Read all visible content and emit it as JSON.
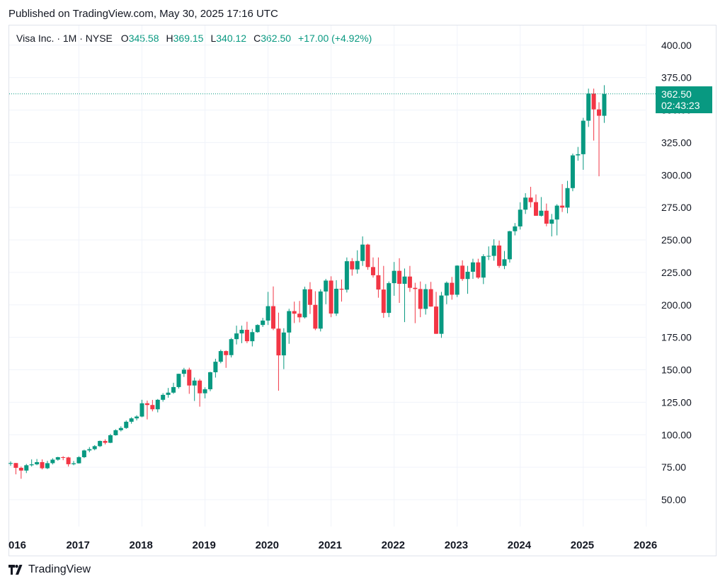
{
  "header": {
    "published": "Published on TradingView.com, May 30, 2025 17:16 UTC"
  },
  "legend": {
    "symbol": "Visa Inc. · 1M · NYSE",
    "o_label": "O",
    "o_value": "345.58",
    "h_label": "H",
    "h_value": "369.15",
    "l_label": "L",
    "l_value": "340.12",
    "c_label": "C",
    "c_value": "362.50",
    "change": "+17.00 (+4.92%)"
  },
  "price_tag": {
    "price": "362.50",
    "countdown": "02:43:23"
  },
  "footer": {
    "brand": "TradingView"
  },
  "colors": {
    "up": "#089981",
    "down": "#f23645",
    "grid": "#f0f3fa",
    "last_price_line": "#089981"
  },
  "chart_data": {
    "type": "candlestick",
    "interval": "1M",
    "y_ticks": [
      "50.00",
      "75.00",
      "100.00",
      "125.00",
      "150.00",
      "175.00",
      "200.00",
      "225.00",
      "250.00",
      "275.00",
      "300.00",
      "325.00",
      "350.00",
      "375.00",
      "400.00"
    ],
    "x_ticks": [
      "016",
      "2017",
      "2018",
      "2019",
      "2020",
      "2021",
      "2022",
      "2023",
      "2024",
      "2025",
      "2026"
    ],
    "grid": true,
    "last_price": 362.5,
    "candles": [
      [
        "2015-12",
        77.6,
        79.5,
        76.0,
        78.2
      ],
      [
        "2016-01",
        78.2,
        78.3,
        69.5,
        74.5
      ],
      [
        "2016-02",
        74.5,
        75.5,
        66.1,
        72.4
      ],
      [
        "2016-03",
        72.4,
        77.5,
        70.5,
        76.5
      ],
      [
        "2016-04",
        76.5,
        81.0,
        75.5,
        77.2
      ],
      [
        "2016-05",
        77.2,
        81.3,
        76.5,
        78.9
      ],
      [
        "2016-06",
        78.9,
        81.0,
        73.3,
        74.2
      ],
      [
        "2016-07",
        74.2,
        79.9,
        73.5,
        78.1
      ],
      [
        "2016-08",
        78.1,
        81.9,
        77.1,
        80.8
      ],
      [
        "2016-09",
        80.8,
        83.0,
        80.0,
        82.7
      ],
      [
        "2016-10",
        82.7,
        83.5,
        80.4,
        82.5
      ],
      [
        "2016-11",
        82.5,
        83.0,
        75.5,
        77.3
      ],
      [
        "2016-12",
        77.3,
        79.8,
        76.5,
        78.0
      ],
      [
        "2017-01",
        78.0,
        83.5,
        77.8,
        82.7
      ],
      [
        "2017-02",
        82.7,
        88.5,
        82.0,
        87.9
      ],
      [
        "2017-03",
        87.9,
        90.5,
        86.5,
        88.9
      ],
      [
        "2017-04",
        88.9,
        92.0,
        88.0,
        91.2
      ],
      [
        "2017-05",
        91.2,
        95.5,
        90.5,
        95.2
      ],
      [
        "2017-06",
        95.2,
        96.5,
        92.5,
        93.8
      ],
      [
        "2017-07",
        93.8,
        100.6,
        93.5,
        99.6
      ],
      [
        "2017-08",
        99.6,
        104.2,
        99.3,
        103.5
      ],
      [
        "2017-09",
        103.5,
        106.5,
        102.5,
        105.2
      ],
      [
        "2017-10",
        105.2,
        111.0,
        104.5,
        110.0
      ],
      [
        "2017-11",
        110.0,
        113.5,
        108.5,
        112.6
      ],
      [
        "2017-12",
        112.6,
        115.0,
        111.0,
        114.0
      ],
      [
        "2018-01",
        114.0,
        126.9,
        113.5,
        124.2
      ],
      [
        "2018-02",
        124.2,
        126.3,
        111.8,
        122.9
      ],
      [
        "2018-03",
        122.9,
        126.8,
        118.0,
        119.6
      ],
      [
        "2018-04",
        119.6,
        127.5,
        117.2,
        126.9
      ],
      [
        "2018-05",
        126.9,
        132.0,
        125.5,
        130.7
      ],
      [
        "2018-06",
        130.7,
        136.0,
        128.5,
        132.4
      ],
      [
        "2018-07",
        132.4,
        140.0,
        131.5,
        136.7
      ],
      [
        "2018-08",
        136.7,
        147.0,
        135.5,
        146.9
      ],
      [
        "2018-09",
        146.9,
        151.5,
        144.5,
        150.1
      ],
      [
        "2018-10",
        150.1,
        151.6,
        131.5,
        137.9
      ],
      [
        "2018-11",
        137.9,
        144.0,
        126.0,
        141.7
      ],
      [
        "2018-12",
        141.7,
        143.0,
        121.6,
        131.9
      ],
      [
        "2019-01",
        131.9,
        136.5,
        128.0,
        135.0
      ],
      [
        "2019-02",
        135.0,
        148.5,
        133.5,
        148.1
      ],
      [
        "2019-03",
        148.1,
        158.5,
        144.0,
        156.2
      ],
      [
        "2019-04",
        156.2,
        165.5,
        155.0,
        164.4
      ],
      [
        "2019-05",
        164.4,
        164.9,
        151.5,
        161.3
      ],
      [
        "2019-06",
        161.3,
        174.5,
        159.5,
        173.6
      ],
      [
        "2019-07",
        173.6,
        184.0,
        169.5,
        178.0
      ],
      [
        "2019-08",
        178.0,
        184.0,
        170.5,
        180.8
      ],
      [
        "2019-09",
        180.8,
        187.0,
        170.5,
        172.0
      ],
      [
        "2019-10",
        172.0,
        181.5,
        168.0,
        179.0
      ],
      [
        "2019-11",
        179.0,
        185.0,
        178.5,
        184.5
      ],
      [
        "2019-12",
        184.5,
        190.0,
        183.0,
        187.9
      ],
      [
        "2020-01",
        187.9,
        210.0,
        184.5,
        199.0
      ],
      [
        "2020-02",
        199.0,
        214.2,
        180.5,
        181.7
      ],
      [
        "2020-03",
        181.7,
        194.0,
        133.9,
        161.1
      ],
      [
        "2020-04",
        161.1,
        182.0,
        150.5,
        178.7
      ],
      [
        "2020-05",
        178.7,
        197.0,
        170.0,
        195.2
      ],
      [
        "2020-06",
        195.2,
        202.5,
        186.0,
        193.2
      ],
      [
        "2020-07",
        193.2,
        203.0,
        186.5,
        190.4
      ],
      [
        "2020-08",
        190.4,
        214.0,
        189.5,
        212.0
      ],
      [
        "2020-09",
        212.0,
        217.5,
        193.0,
        200.0
      ],
      [
        "2020-10",
        200.0,
        210.5,
        180.5,
        181.7
      ],
      [
        "2020-11",
        181.7,
        212.0,
        179.5,
        210.3
      ],
      [
        "2020-12",
        210.3,
        220.0,
        200.5,
        218.7
      ],
      [
        "2021-01",
        218.7,
        222.0,
        190.5,
        193.3
      ],
      [
        "2021-02",
        193.3,
        219.0,
        191.5,
        212.4
      ],
      [
        "2021-03",
        212.4,
        219.5,
        202.5,
        211.7
      ],
      [
        "2021-04",
        211.7,
        236.5,
        209.5,
        233.6
      ],
      [
        "2021-05",
        233.6,
        236.0,
        222.5,
        227.3
      ],
      [
        "2021-06",
        227.3,
        242.0,
        224.0,
        233.8
      ],
      [
        "2021-07",
        233.8,
        252.7,
        230.0,
        246.4
      ],
      [
        "2021-08",
        246.4,
        247.0,
        227.0,
        229.1
      ],
      [
        "2021-09",
        229.1,
        236.5,
        221.0,
        222.8
      ],
      [
        "2021-10",
        222.8,
        236.5,
        205.5,
        211.8
      ],
      [
        "2021-11",
        211.8,
        230.0,
        190.0,
        193.8
      ],
      [
        "2021-12",
        193.8,
        218.0,
        190.5,
        216.7
      ],
      [
        "2022-01",
        216.7,
        233.0,
        207.0,
        226.2
      ],
      [
        "2022-02",
        226.2,
        235.9,
        201.5,
        216.2
      ],
      [
        "2022-03",
        216.2,
        228.0,
        186.7,
        221.8
      ],
      [
        "2022-04",
        221.8,
        230.0,
        210.0,
        213.1
      ],
      [
        "2022-05",
        213.1,
        217.0,
        185.9,
        212.2
      ],
      [
        "2022-06",
        212.2,
        218.0,
        190.5,
        196.9
      ],
      [
        "2022-07",
        196.9,
        216.0,
        192.5,
        212.1
      ],
      [
        "2022-08",
        212.1,
        217.7,
        198.5,
        198.7
      ],
      [
        "2022-09",
        198.7,
        210.0,
        177.6,
        177.7
      ],
      [
        "2022-10",
        177.7,
        210.0,
        174.6,
        207.2
      ],
      [
        "2022-11",
        207.2,
        218.0,
        200.5,
        217.0
      ],
      [
        "2022-12",
        217.0,
        221.5,
        204.0,
        207.8
      ],
      [
        "2023-01",
        207.8,
        230.5,
        206.0,
        230.2
      ],
      [
        "2023-02",
        230.2,
        234.3,
        218.5,
        219.9
      ],
      [
        "2023-03",
        219.9,
        230.0,
        208.5,
        225.5
      ],
      [
        "2023-04",
        225.5,
        235.5,
        220.0,
        232.7
      ],
      [
        "2023-05",
        232.7,
        235.5,
        220.0,
        221.0
      ],
      [
        "2023-06",
        221.0,
        239.0,
        216.0,
        237.5
      ],
      [
        "2023-07",
        237.5,
        245.0,
        234.5,
        237.7
      ],
      [
        "2023-08",
        237.7,
        250.5,
        234.0,
        245.7
      ],
      [
        "2023-09",
        245.7,
        249.5,
        228.5,
        230.0
      ],
      [
        "2023-10",
        230.0,
        241.5,
        227.5,
        235.1
      ],
      [
        "2023-11",
        235.1,
        257.0,
        232.5,
        256.7
      ],
      [
        "2023-12",
        256.7,
        263.0,
        253.5,
        260.4
      ],
      [
        "2024-01",
        260.4,
        279.0,
        258.0,
        273.3
      ],
      [
        "2024-02",
        273.3,
        286.0,
        270.0,
        282.6
      ],
      [
        "2024-03",
        282.6,
        290.9,
        275.0,
        279.1
      ],
      [
        "2024-04",
        279.1,
        285.0,
        268.5,
        268.6
      ],
      [
        "2024-05",
        268.6,
        283.0,
        268.0,
        272.5
      ],
      [
        "2024-06",
        272.5,
        278.0,
        260.5,
        262.5
      ],
      [
        "2024-07",
        262.5,
        270.0,
        252.7,
        265.7
      ],
      [
        "2024-08",
        265.7,
        277.5,
        253.5,
        276.4
      ],
      [
        "2024-09",
        276.4,
        293.0,
        271.5,
        274.9
      ],
      [
        "2024-10",
        274.9,
        295.5,
        270.5,
        289.9
      ],
      [
        "2024-11",
        289.9,
        316.5,
        287.5,
        315.1
      ],
      [
        "2024-12",
        315.1,
        321.6,
        311.0,
        316.0
      ],
      [
        "2025-01",
        316.0,
        344.0,
        304.0,
        341.8
      ],
      [
        "2025-02",
        341.8,
        366.5,
        337.0,
        362.7
      ],
      [
        "2025-03",
        362.7,
        366.5,
        326.5,
        350.5
      ],
      [
        "2025-04",
        350.5,
        356.0,
        299.0,
        345.6
      ],
      [
        "2025-05",
        345.58,
        369.15,
        340.12,
        362.5
      ]
    ]
  }
}
